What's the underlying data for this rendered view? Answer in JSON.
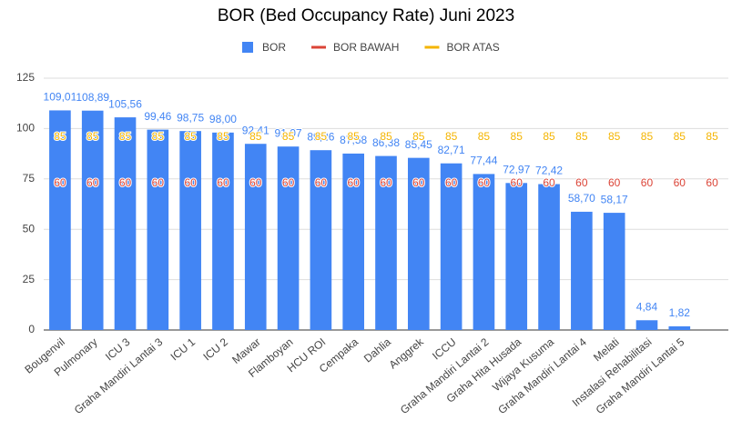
{
  "chart_data": {
    "type": "bar",
    "title": "BOR (Bed Occupancy Rate) Juni 2023",
    "categories": [
      "Bougenvil",
      "Pulmonary",
      "ICU 3",
      "Graha Mandiri Lantai 3",
      "ICU 1",
      "ICU 2",
      "Mawar",
      "Flamboyan",
      "HCU ROI",
      "Cempaka",
      "Dahlia",
      "Anggrek",
      "ICCU",
      "Graha Mandiri Lantai 2",
      "Graha Hita Husada",
      "Wijaya Kusuma",
      "Graha Mandiri Lantai 4",
      "Melati",
      "Instalasi Rehabilitasi",
      "Graha Mandiri Lantai 5",
      null
    ],
    "series": [
      {
        "name": "BOR",
        "type": "bar",
        "color": "#4285f4",
        "values": [
          109.01,
          108.89,
          105.56,
          99.46,
          98.75,
          98.0,
          92.41,
          91.07,
          89.26,
          87.58,
          86.38,
          85.45,
          82.71,
          77.44,
          72.97,
          72.42,
          58.7,
          58.17,
          4.84,
          1.82,
          null
        ],
        "value_labels": [
          "109,01",
          "108,89",
          "105,56",
          "99,46",
          "98,75",
          "98,00",
          "92,41",
          "91,07",
          "89,26",
          "87,58",
          "86,38",
          "85,45",
          "82,71",
          "77,44",
          "72,97",
          "72,42",
          "58,70",
          "58,17",
          "4,84",
          "1,82",
          null
        ]
      },
      {
        "name": "BOR BAWAH",
        "type": "line",
        "color": "#db4437",
        "values": [
          60,
          60,
          60,
          60,
          60,
          60,
          60,
          60,
          60,
          60,
          60,
          60,
          60,
          60,
          60,
          60,
          60,
          60,
          60,
          60,
          60
        ]
      },
      {
        "name": "BOR ATAS",
        "type": "line",
        "color": "#f4b400",
        "values": [
          85,
          85,
          85,
          85,
          85,
          85,
          85,
          85,
          85,
          85,
          85,
          85,
          85,
          85,
          85,
          85,
          85,
          85,
          85,
          85,
          85
        ]
      }
    ],
    "ylim": [
      0,
      125
    ],
    "yticks": [
      0,
      25,
      50,
      75,
      100,
      125
    ],
    "grid": true,
    "legend": "top"
  }
}
